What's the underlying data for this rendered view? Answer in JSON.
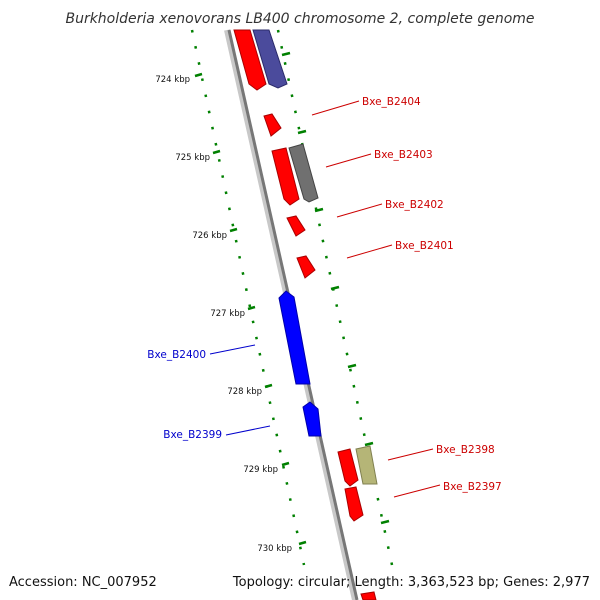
{
  "title": "Burkholderia xenovorans LB400 chromosome 2, complete genome",
  "footer": {
    "accession": "Accession: NC_007952",
    "summary": "Topology: circular; Length: 3,363,523 bp; Genes: 2,977"
  },
  "colors": {
    "backbone": "#808080",
    "tick": "#008000",
    "forward_gene": "#ff0000",
    "reverse_gene": "#0000ff",
    "reverse_gene_dark": "#4b4b9c",
    "gray_feature": "#707070",
    "olive_feature": "#b5b577",
    "forward_label": "#cc0000",
    "reverse_label": "#0000cc"
  },
  "ticks": [
    {
      "kbp": 724,
      "label": "724 kbp"
    },
    {
      "kbp": 725,
      "label": "725 kbp"
    },
    {
      "kbp": 726,
      "label": "726 kbp"
    },
    {
      "kbp": 727,
      "label": "727 kbp"
    },
    {
      "kbp": 728,
      "label": "728 kbp"
    },
    {
      "kbp": 729,
      "label": "729 kbp"
    },
    {
      "kbp": 730,
      "label": "730 kbp"
    }
  ],
  "genes": [
    {
      "label": "Bxe_B2404",
      "strand": "forward"
    },
    {
      "label": "Bxe_B2403",
      "strand": "forward"
    },
    {
      "label": "Bxe_B2402",
      "strand": "forward"
    },
    {
      "label": "Bxe_B2401",
      "strand": "forward"
    },
    {
      "label": "Bxe_B2400",
      "strand": "reverse"
    },
    {
      "label": "Bxe_B2399",
      "strand": "reverse"
    },
    {
      "label": "Bxe_B2398",
      "strand": "forward"
    },
    {
      "label": "Bxe_B2397",
      "strand": "forward"
    }
  ]
}
